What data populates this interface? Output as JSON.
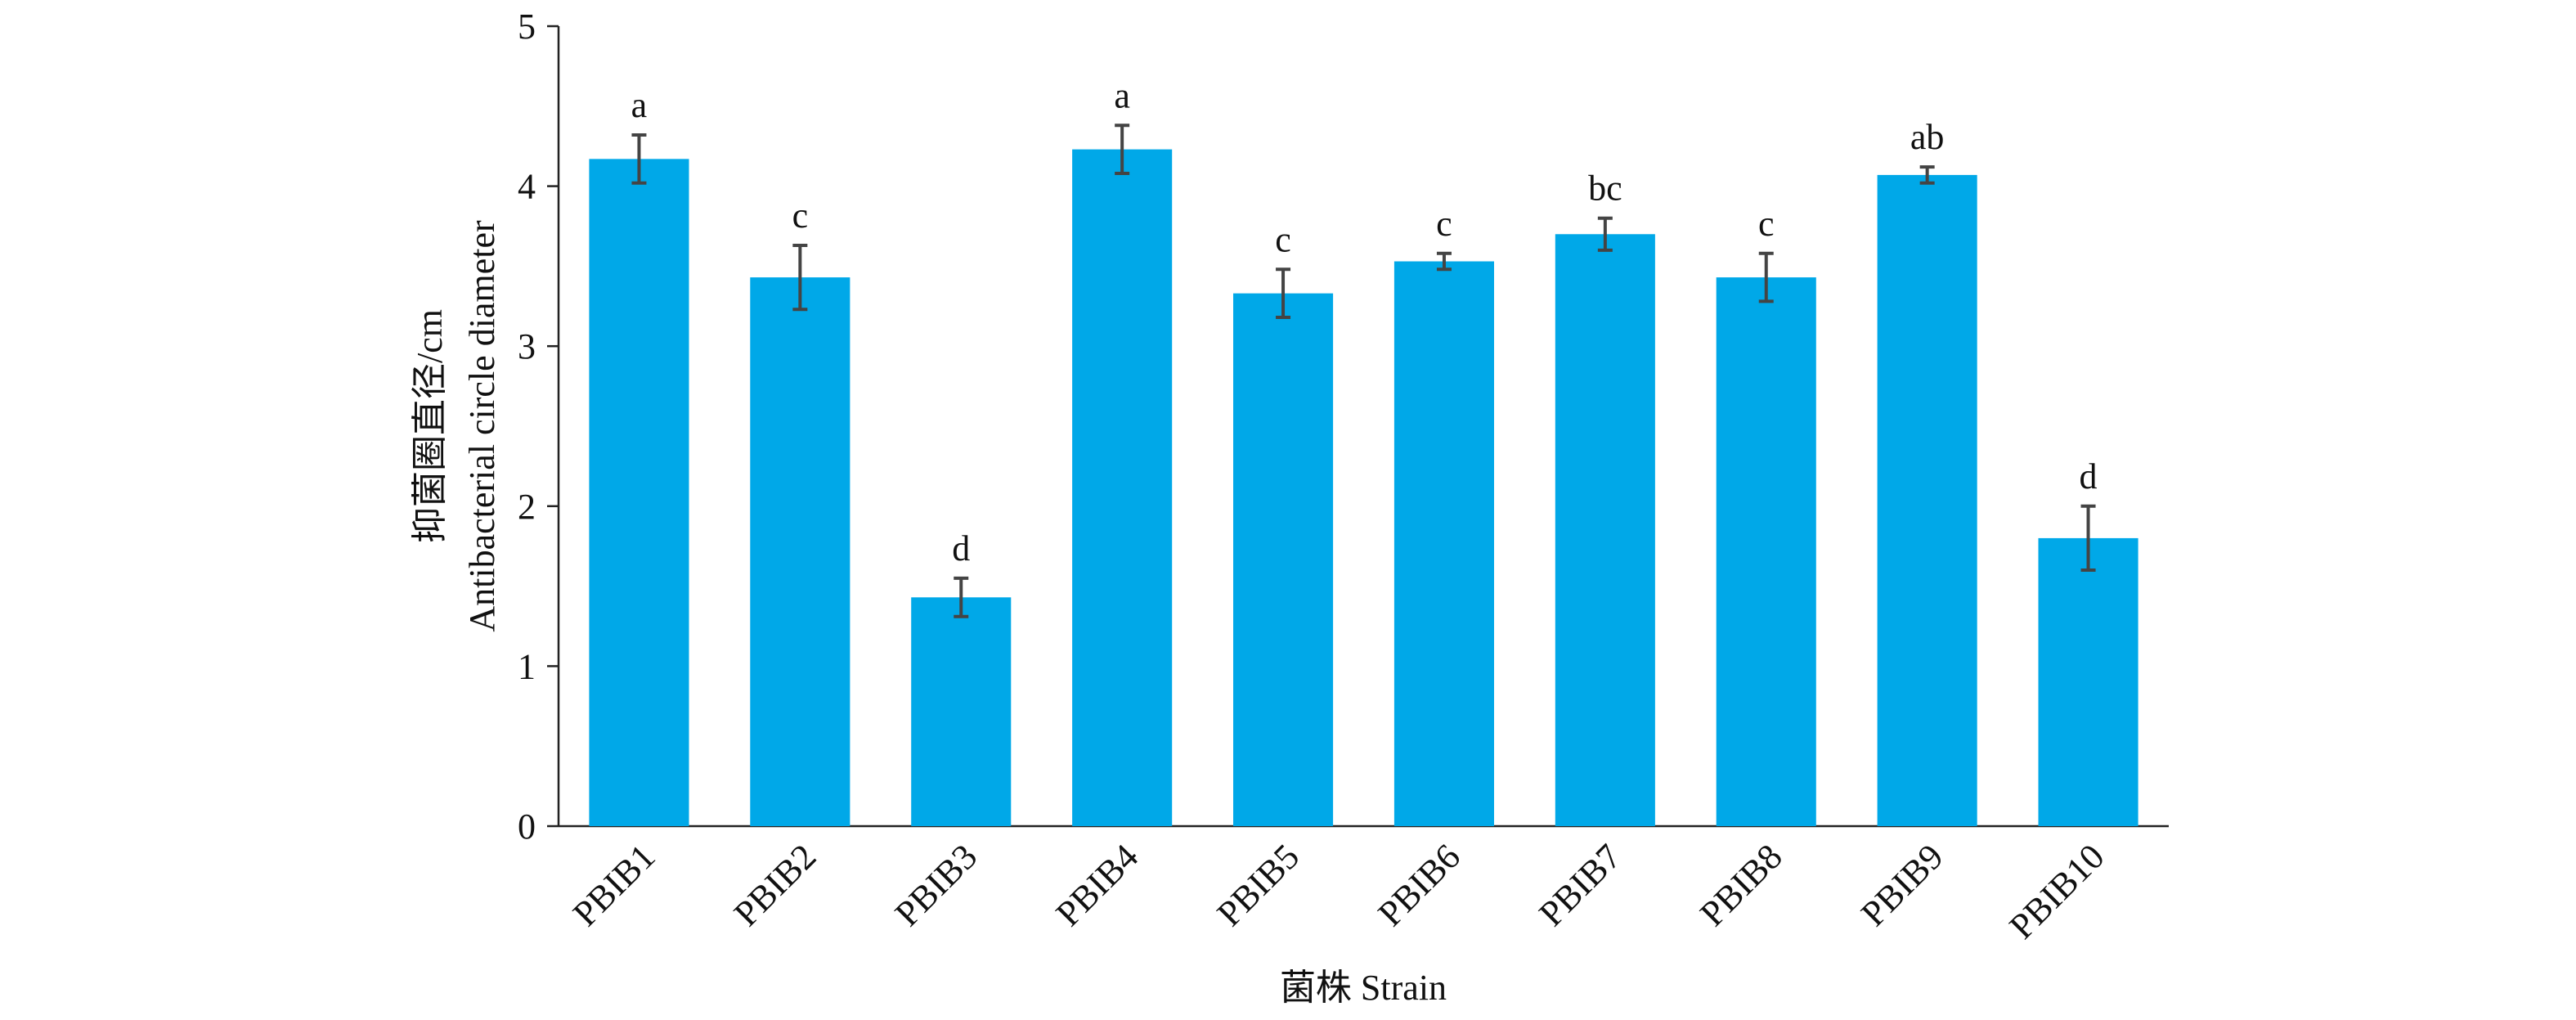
{
  "chart_data": {
    "type": "bar",
    "x_label": "菌株 Strain",
    "y_label": [
      "抑菌圈直径/cm",
      "Antibacterial circle diameter"
    ],
    "categories": [
      "PBIB1",
      "PBIB2",
      "PBIB3",
      "PBIB4",
      "PBIB5",
      "PBIB6",
      "PBIB7",
      "PBIB8",
      "PBIB9",
      "PBIB10"
    ],
    "values": [
      4.17,
      3.43,
      1.43,
      4.23,
      3.33,
      3.53,
      3.7,
      3.43,
      4.07,
      1.8
    ],
    "errors": [
      0.15,
      0.2,
      0.12,
      0.15,
      0.15,
      0.05,
      0.1,
      0.15,
      0.05,
      0.2
    ],
    "annotations": [
      "a",
      "c",
      "d",
      "a",
      "c",
      "c",
      "bc",
      "c",
      "ab",
      "d"
    ],
    "color": "#00a8e8",
    "ylim": [
      0,
      5
    ],
    "yticks": [
      0,
      1,
      2,
      3,
      4,
      5
    ]
  }
}
